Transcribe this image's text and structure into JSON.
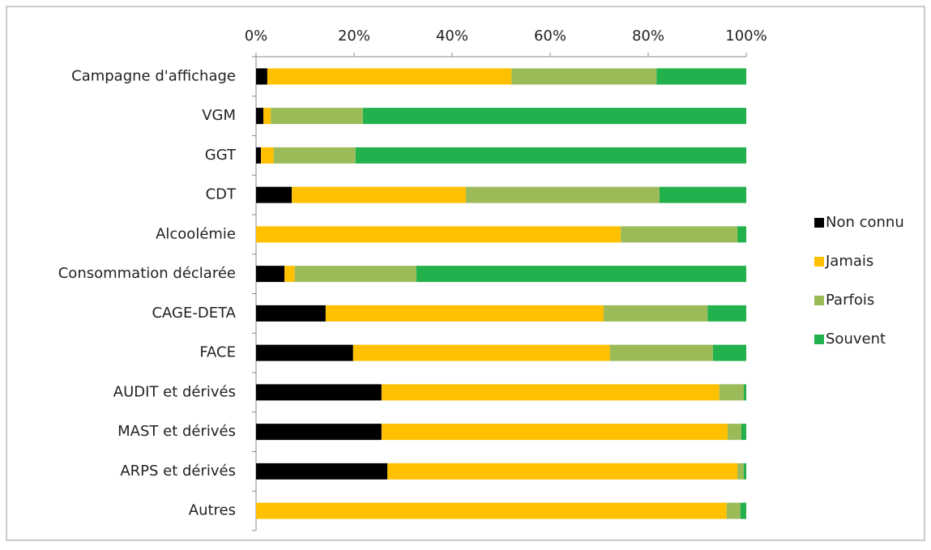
{
  "chart_data": {
    "type": "bar",
    "orientation": "horizontal",
    "stacked": true,
    "categories": [
      "Campagne d'affichage",
      "VGM",
      "GGT",
      "CDT",
      "Alcoolémie",
      "Consommation déclarée",
      "CAGE-DETA",
      "FACE",
      "AUDIT et dérivés",
      "MAST et dérivés",
      "ARPS et dérivés",
      "Autres"
    ],
    "series": [
      {
        "name": "Non connu",
        "color": "#000000",
        "values": [
          2.3,
          1.5,
          1.0,
          7.3,
          0,
          5.8,
          14.2,
          19.8,
          25.6,
          25.6,
          26.8,
          0
        ]
      },
      {
        "name": "Jamais",
        "color": "#ffc000",
        "values": [
          49.8,
          1.5,
          2.6,
          35.5,
          74.4,
          2.1,
          56.7,
          52.4,
          68.9,
          70.6,
          71.4,
          96.0
        ]
      },
      {
        "name": "Parfois",
        "color": "#9bbb59",
        "values": [
          29.6,
          18.8,
          16.7,
          39.5,
          23.8,
          24.8,
          21.2,
          21.0,
          5.0,
          2.8,
          1.3,
          2.8
        ]
      },
      {
        "name": "Souvent",
        "color": "#22b14c",
        "values": [
          18.3,
          78.2,
          79.7,
          17.7,
          1.8,
          67.3,
          7.9,
          6.8,
          0.5,
          1.0,
          0.5,
          1.2
        ]
      }
    ],
    "xlim": [
      0,
      100
    ],
    "xticks": [
      {
        "value": 0,
        "label": "0%"
      },
      {
        "value": 20,
        "label": "20%"
      },
      {
        "value": 40,
        "label": "40%"
      },
      {
        "value": 60,
        "label": "60%"
      },
      {
        "value": 80,
        "label": "80%"
      },
      {
        "value": 100,
        "label": "100%"
      }
    ],
    "legend": "right"
  }
}
